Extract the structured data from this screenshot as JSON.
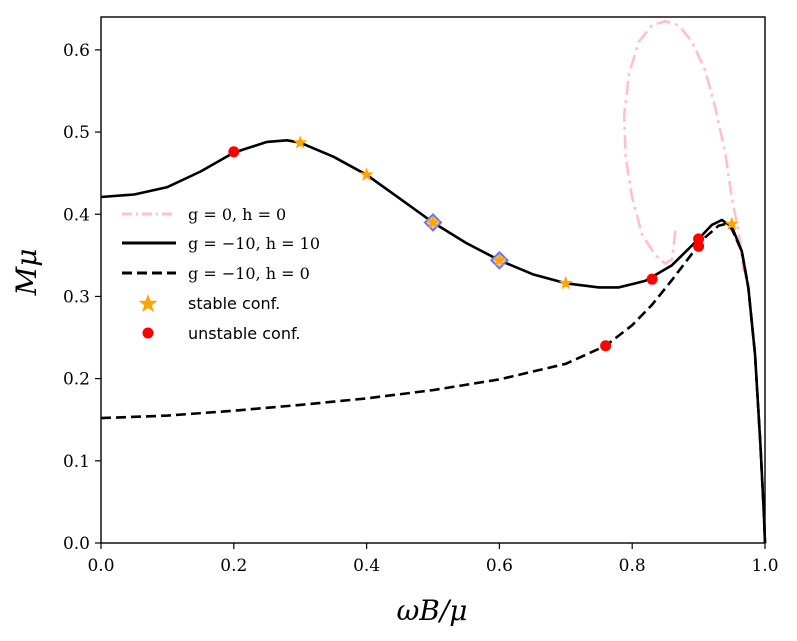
{
  "chart_data": {
    "type": "line",
    "title": "",
    "xlabel": "ωB/μ",
    "ylabel": "Mμ",
    "xlim": [
      0.0,
      1.0
    ],
    "ylim": [
      0.0,
      0.64
    ],
    "xticks": [
      "0.0",
      "0.2",
      "0.4",
      "0.6",
      "0.8",
      "1.0"
    ],
    "yticks": [
      "0.0",
      "0.1",
      "0.2",
      "0.3",
      "0.4",
      "0.5",
      "0.6"
    ],
    "legend_position": "center-left",
    "legend": [
      {
        "key": "pink",
        "label": "g = 0, h = 0"
      },
      {
        "key": "solid",
        "label": "g = −10, h = 10"
      },
      {
        "key": "dashed",
        "label": "g = −10, h = 0"
      },
      {
        "key": "star",
        "label": "stable conf."
      },
      {
        "key": "dot",
        "label": "unstable conf."
      }
    ],
    "colors": {
      "pink": "#ffc0cb",
      "line": "#000000",
      "star": "#ffa500",
      "dot": "#ff0000",
      "diamond": "#7070e8"
    },
    "series": [
      {
        "name": "g = 0, h = 0",
        "style": "dashdot",
        "color": "#ffc0cb",
        "points": [
          [
            0.865,
            0.38
          ],
          [
            0.86,
            0.345
          ],
          [
            0.85,
            0.34
          ],
          [
            0.835,
            0.35
          ],
          [
            0.815,
            0.375
          ],
          [
            0.8,
            0.42
          ],
          [
            0.79,
            0.47
          ],
          [
            0.788,
            0.52
          ],
          [
            0.795,
            0.57
          ],
          [
            0.81,
            0.61
          ],
          [
            0.83,
            0.63
          ],
          [
            0.85,
            0.635
          ],
          [
            0.87,
            0.63
          ],
          [
            0.89,
            0.61
          ],
          [
            0.91,
            0.575
          ],
          [
            0.925,
            0.53
          ],
          [
            0.94,
            0.475
          ],
          [
            0.95,
            0.42
          ],
          [
            0.96,
            0.38
          ],
          [
            0.968,
            0.33
          ]
        ]
      },
      {
        "name": "g = −10, h = 10",
        "style": "solid",
        "color": "#000000",
        "points": [
          [
            0.0,
            0.421
          ],
          [
            0.05,
            0.424
          ],
          [
            0.1,
            0.433
          ],
          [
            0.15,
            0.452
          ],
          [
            0.2,
            0.475
          ],
          [
            0.25,
            0.488
          ],
          [
            0.28,
            0.49
          ],
          [
            0.3,
            0.487
          ],
          [
            0.35,
            0.47
          ],
          [
            0.4,
            0.448
          ],
          [
            0.45,
            0.419
          ],
          [
            0.5,
            0.39
          ],
          [
            0.55,
            0.365
          ],
          [
            0.6,
            0.344
          ],
          [
            0.65,
            0.327
          ],
          [
            0.7,
            0.316
          ],
          [
            0.75,
            0.311
          ],
          [
            0.78,
            0.311
          ],
          [
            0.82,
            0.319
          ],
          [
            0.86,
            0.338
          ],
          [
            0.9,
            0.37
          ],
          [
            0.92,
            0.387
          ],
          [
            0.935,
            0.393
          ],
          [
            0.95,
            0.385
          ],
          [
            0.965,
            0.355
          ],
          [
            0.975,
            0.31
          ],
          [
            0.985,
            0.23
          ],
          [
            0.993,
            0.12
          ],
          [
            0.998,
            0.04
          ],
          [
            1.0,
            0.0
          ]
        ]
      },
      {
        "name": "g = −10, h = 0",
        "style": "dashed",
        "color": "#000000",
        "points": [
          [
            0.0,
            0.152
          ],
          [
            0.1,
            0.155
          ],
          [
            0.2,
            0.161
          ],
          [
            0.3,
            0.168
          ],
          [
            0.4,
            0.176
          ],
          [
            0.5,
            0.186
          ],
          [
            0.6,
            0.199
          ],
          [
            0.7,
            0.218
          ],
          [
            0.76,
            0.24
          ],
          [
            0.8,
            0.265
          ],
          [
            0.83,
            0.29
          ],
          [
            0.86,
            0.32
          ],
          [
            0.89,
            0.352
          ],
          [
            0.91,
            0.372
          ],
          [
            0.93,
            0.386
          ],
          [
            0.94,
            0.388
          ],
          [
            0.95,
            0.382
          ],
          [
            0.965,
            0.355
          ],
          [
            0.975,
            0.31
          ],
          [
            0.985,
            0.23
          ],
          [
            0.993,
            0.12
          ],
          [
            0.998,
            0.04
          ],
          [
            1.0,
            0.0
          ]
        ]
      }
    ],
    "stable_points": [
      [
        0.3,
        0.487
      ],
      [
        0.4,
        0.448
      ],
      [
        0.5,
        0.39
      ],
      [
        0.6,
        0.344
      ],
      [
        0.7,
        0.316
      ],
      [
        0.95,
        0.388
      ]
    ],
    "unstable_points": [
      [
        0.2,
        0.476
      ],
      [
        0.76,
        0.24
      ],
      [
        0.83,
        0.321
      ],
      [
        0.9,
        0.37
      ],
      [
        0.9,
        0.361
      ]
    ],
    "diamond_points": [
      [
        0.5,
        0.39
      ],
      [
        0.6,
        0.344
      ]
    ]
  }
}
